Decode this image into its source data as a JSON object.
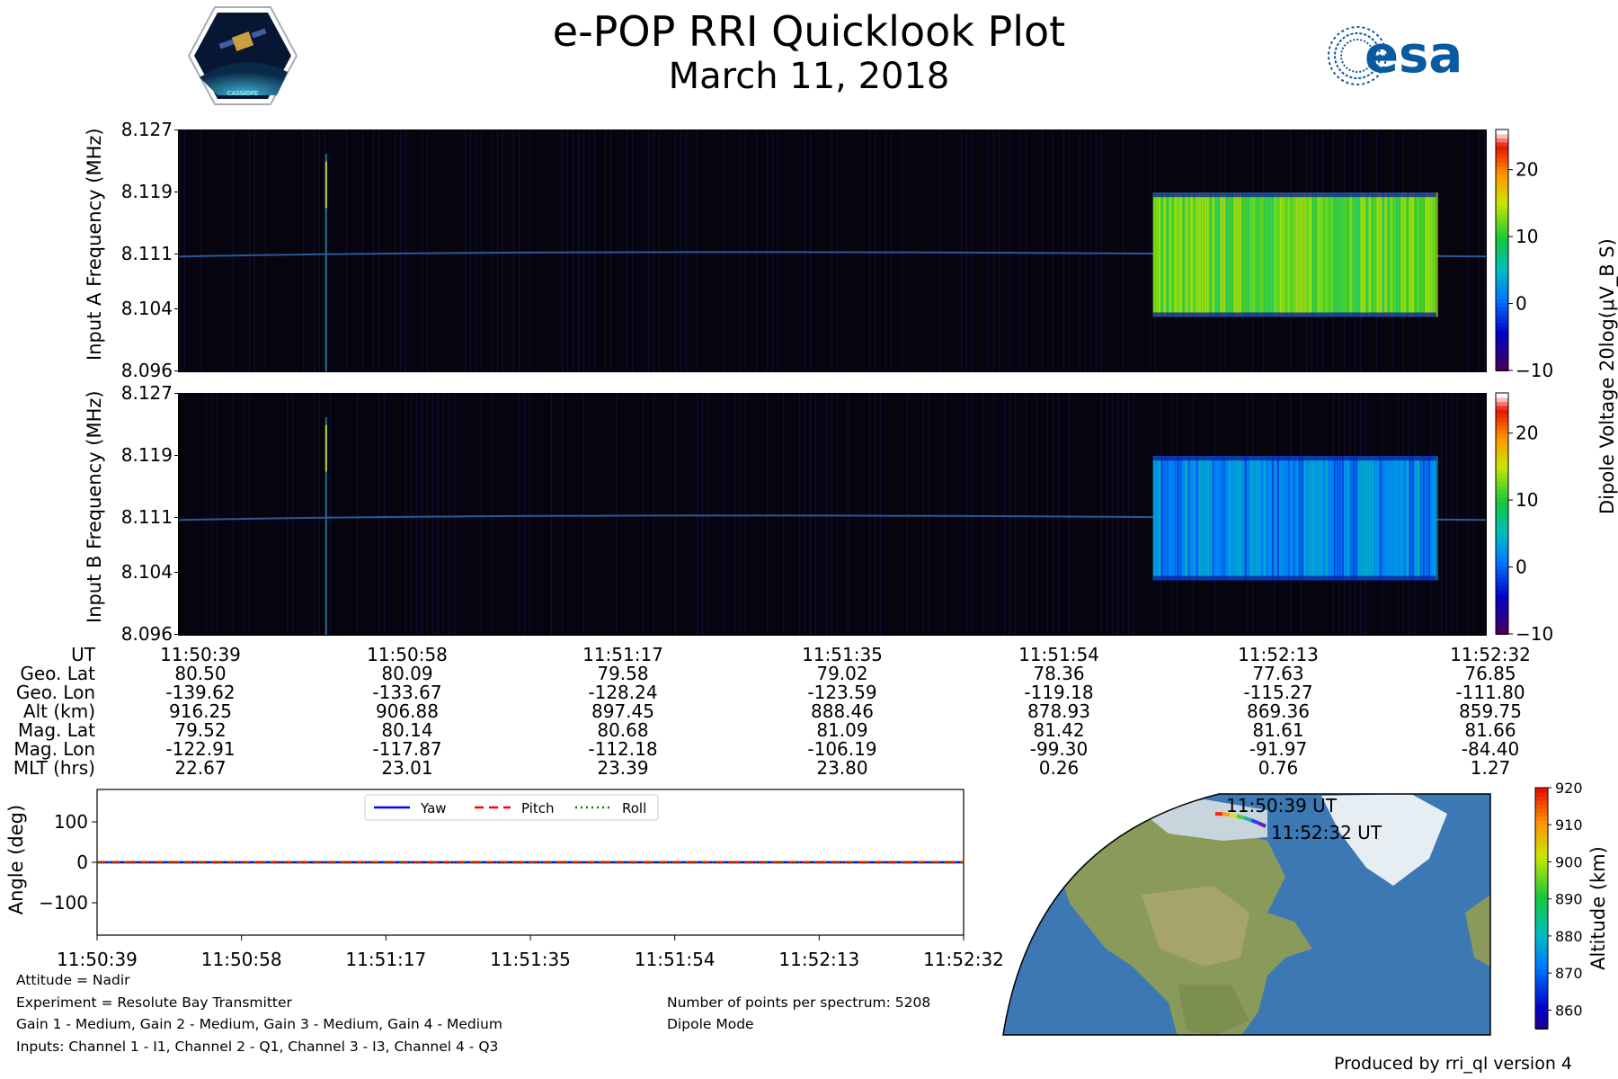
{
  "header": {
    "title": "e-POP RRI Quicklook Plot",
    "subtitle": "March 11, 2018",
    "logo_left": "CASSIOPE",
    "logo_right": "esa"
  },
  "chart_data": [
    {
      "type": "heatmap",
      "name": "input-a",
      "ylabel": "Input A Frequency (MHz)",
      "yticks": [
        "8.127",
        "8.119",
        "8.111",
        "8.104",
        "8.096"
      ],
      "ylim": [
        8.096,
        8.127
      ],
      "x": [
        "11:50:39",
        "11:50:58",
        "11:51:17",
        "11:51:35",
        "11:51:54",
        "11:52:13",
        "11:52:32"
      ],
      "colorbar": {
        "label": "Dipole Voltage 20log(μV_B S)",
        "ticks": [
          "20",
          "10",
          "0",
          "−10"
        ],
        "range": [
          -10,
          26
        ]
      },
      "features": {
        "carrier_line_mhz": 8.111,
        "burst": {
          "start": "11:52:05",
          "end": "11:52:30",
          "fmin": 8.103,
          "fmax": 8.119,
          "level_db": 12
        },
        "spike_time": "11:50:52"
      }
    },
    {
      "type": "heatmap",
      "name": "input-b",
      "ylabel": "Input B Frequency (MHz)",
      "yticks": [
        "8.127",
        "8.119",
        "8.111",
        "8.104",
        "8.096"
      ],
      "ylim": [
        8.096,
        8.127
      ],
      "x": [
        "11:50:39",
        "11:50:58",
        "11:51:17",
        "11:51:35",
        "11:51:54",
        "11:52:13",
        "11:52:32"
      ],
      "colorbar": {
        "ticks": [
          "20",
          "10",
          "0",
          "−10"
        ],
        "range": [
          -10,
          26
        ]
      },
      "features": {
        "carrier_line_mhz": 8.111,
        "burst": {
          "start": "11:52:05",
          "end": "11:52:30",
          "fmin": 8.103,
          "fmax": 8.119,
          "level_db": 2
        },
        "spike_time": "11:50:52"
      }
    },
    {
      "type": "line",
      "name": "attitude",
      "ylabel": "Angle (deg)",
      "yticks": [
        "100",
        "0",
        "−100"
      ],
      "ylim": [
        -180,
        180
      ],
      "x": [
        "11:50:39",
        "11:50:58",
        "11:51:17",
        "11:51:35",
        "11:51:54",
        "11:52:13",
        "11:52:32"
      ],
      "series": [
        {
          "name": "Yaw",
          "values": [
            0,
            0,
            0,
            0,
            0,
            0,
            0
          ],
          "color": "#0000ff",
          "style": "solid"
        },
        {
          "name": "Pitch",
          "values": [
            0,
            0,
            0,
            0,
            0,
            0,
            0
          ],
          "color": "#ff0000",
          "style": "dashed"
        },
        {
          "name": "Roll",
          "values": [
            0,
            0,
            0,
            0,
            0,
            0,
            0
          ],
          "color": "#008000",
          "style": "dotted"
        }
      ],
      "legend": "top-center"
    }
  ],
  "ephemeris": {
    "rows": [
      {
        "label": "UT",
        "values": [
          "11:50:39",
          "11:50:58",
          "11:51:17",
          "11:51:35",
          "11:51:54",
          "11:52:13",
          "11:52:32"
        ]
      },
      {
        "label": "Geo. Lat",
        "values": [
          "80.50",
          "80.09",
          "79.58",
          "79.02",
          "78.36",
          "77.63",
          "76.85"
        ]
      },
      {
        "label": "Geo. Lon",
        "values": [
          "-139.62",
          "-133.67",
          "-128.24",
          "-123.59",
          "-119.18",
          "-115.27",
          "-111.80"
        ]
      },
      {
        "label": "Alt (km)",
        "values": [
          "916.25",
          "906.88",
          "897.45",
          "888.46",
          "878.93",
          "869.36",
          "859.75"
        ]
      },
      {
        "label": "Mag. Lat",
        "values": [
          "79.52",
          "80.14",
          "80.68",
          "81.09",
          "81.42",
          "81.61",
          "81.66"
        ]
      },
      {
        "label": "Mag. Lon",
        "values": [
          "-122.91",
          "-117.87",
          "-112.18",
          "-106.19",
          "-99.30",
          "-91.97",
          "-84.40"
        ]
      },
      {
        "label": "MLT (hrs)",
        "values": [
          "22.67",
          "23.01",
          "23.39",
          "23.80",
          "0.26",
          "0.76",
          "1.27"
        ]
      }
    ]
  },
  "map": {
    "start_label": "11:50:39 UT",
    "end_label": "11:52:32 UT",
    "colorbar_label": "Altitude (km)",
    "colorbar_ticks": [
      "920",
      "910",
      "900",
      "890",
      "880",
      "870",
      "860"
    ]
  },
  "notes": {
    "attitude": "Attitude = Nadir",
    "experiment": "Experiment = Resolute Bay Transmitter",
    "gains": "Gain 1 - Medium, Gain 2 - Medium, Gain 3 - Medium, Gain 4 - Medium",
    "inputs": "Inputs: Channel 1 - I1, Channel 2 - Q1, Channel 3 - I3, Channel 4 - Q3",
    "points": "Number of points per spectrum: 5208",
    "mode": "Dipole Mode",
    "produced": "Produced by rri_ql version 4"
  }
}
